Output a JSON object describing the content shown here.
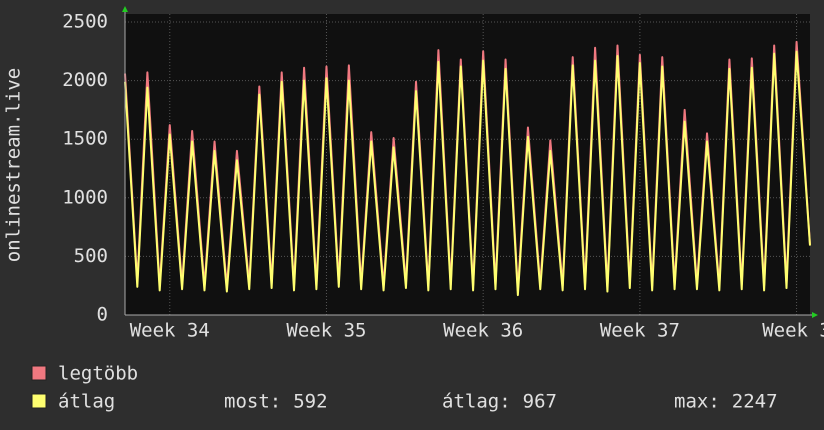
{
  "chart_data": {
    "type": "line",
    "y_label": "onlinestream.live",
    "x": [
      0,
      0.55,
      1,
      1.55,
      2,
      2.55,
      3,
      3.55,
      4,
      4.55,
      5,
      5.55,
      6,
      6.55,
      7,
      7.55,
      8,
      8.55,
      9,
      9.55,
      10,
      10.55,
      11,
      11.55,
      12,
      12.55,
      13,
      13.55,
      14,
      14.55,
      15,
      15.55,
      16,
      16.55,
      17,
      17.55,
      18,
      18.55,
      19,
      19.55,
      20,
      20.55,
      21,
      21.55,
      22,
      22.55,
      23,
      23.55,
      24,
      24.55,
      25,
      25.55,
      26,
      26.55,
      27,
      27.55,
      28,
      28.55,
      29,
      29.55,
      30,
      30.6
    ],
    "series": [
      {
        "name": "legtöbb",
        "color": "#f07880",
        "values": [
          2060,
          280,
          2070,
          250,
          1620,
          260,
          1570,
          250,
          1480,
          240,
          1400,
          260,
          1950,
          270,
          2070,
          250,
          2110,
          260,
          2120,
          280,
          2130,
          260,
          1560,
          250,
          1510,
          270,
          1990,
          250,
          2260,
          260,
          2180,
          250,
          2250,
          260,
          2180,
          210,
          1600,
          260,
          1490,
          250,
          2200,
          260,
          2280,
          240,
          2300,
          270,
          2220,
          250,
          2200,
          260,
          1750,
          260,
          1550,
          250,
          2180,
          260,
          2190,
          250,
          2300,
          270,
          2330,
          600
        ]
      },
      {
        "name": "átlag",
        "color": "#ffff70",
        "values": [
          1990,
          240,
          1940,
          210,
          1540,
          220,
          1480,
          210,
          1400,
          200,
          1320,
          220,
          1880,
          230,
          1990,
          210,
          2000,
          220,
          2020,
          240,
          2000,
          220,
          1480,
          210,
          1430,
          230,
          1910,
          210,
          2160,
          220,
          2120,
          210,
          2170,
          220,
          2100,
          170,
          1520,
          220,
          1400,
          210,
          2130,
          220,
          2170,
          200,
          2210,
          230,
          2150,
          210,
          2120,
          220,
          1650,
          220,
          1480,
          210,
          2100,
          220,
          2110,
          210,
          2230,
          230,
          2247,
          592
        ]
      }
    ],
    "xlim": [
      0,
      30.6
    ],
    "xticks": [
      {
        "value": 2,
        "label": "Week 34"
      },
      {
        "value": 9,
        "label": "Week 35"
      },
      {
        "value": 16,
        "label": "Week 36"
      },
      {
        "value": 23,
        "label": "Week 37"
      },
      {
        "value": 30,
        "label": "Week 3"
      }
    ],
    "ylim": [
      0,
      2500
    ],
    "yticks": [
      0,
      500,
      1000,
      1500,
      2000,
      2500
    ],
    "grid": true,
    "stats": [
      {
        "label": "most:",
        "value": 592
      },
      {
        "label": "átlag:",
        "value": 967
      },
      {
        "label": "max:",
        "value": 2247
      }
    ]
  }
}
